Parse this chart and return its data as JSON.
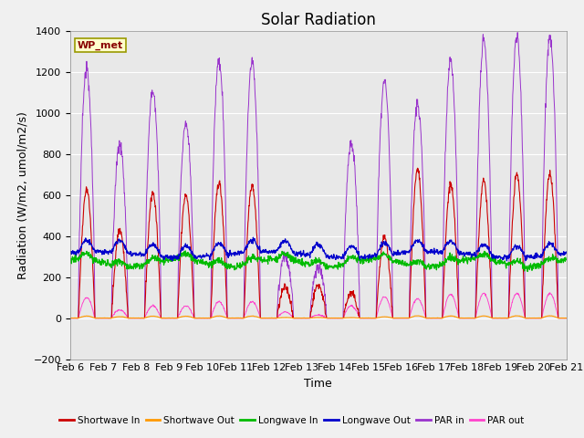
{
  "title": "Solar Radiation",
  "ylabel": "Radiation (W/m2, umol/m2/s)",
  "xlabel": "Time",
  "ylim": [
    -200,
    1400
  ],
  "xlim": [
    0,
    360
  ],
  "x_tick_labels": [
    "Feb 6",
    "Feb 7",
    "Feb 8",
    "Feb 9",
    "Feb 10",
    "Feb 11",
    "Feb 12",
    "Feb 13",
    "Feb 14",
    "Feb 15",
    "Feb 16",
    "Feb 17",
    "Feb 18",
    "Feb 19",
    "Feb 20",
    "Feb 21"
  ],
  "x_tick_positions": [
    0,
    24,
    48,
    72,
    96,
    120,
    144,
    168,
    192,
    216,
    240,
    264,
    288,
    312,
    336,
    360
  ],
  "station_label": "WP_met",
  "colors": {
    "shortwave_in": "#cc0000",
    "shortwave_out": "#ff9900",
    "longwave_in": "#00bb00",
    "longwave_out": "#0000cc",
    "par_in": "#9933cc",
    "par_out": "#ff44cc"
  },
  "legend_labels": [
    "Shortwave In",
    "Shortwave Out",
    "Longwave In",
    "Longwave Out",
    "PAR in",
    "PAR out"
  ],
  "background_color": "#e8e8e8",
  "plot_bg_color": "#e8e8e8",
  "fig_bg_color": "#f0f0f0",
  "grid_color": "#ffffff",
  "title_fontsize": 12,
  "label_fontsize": 9,
  "tick_fontsize": 8,
  "sw_peaks": [
    630,
    430,
    610,
    600,
    660,
    650,
    150,
    160,
    120,
    390,
    720,
    650,
    670,
    700,
    700
  ],
  "par_peaks": [
    1210,
    850,
    1110,
    950,
    1255,
    1248,
    300,
    250,
    850,
    1155,
    1040,
    1250,
    1350,
    1370,
    1370
  ],
  "par_out_peaks": [
    100,
    40,
    60,
    60,
    80,
    80,
    30,
    15,
    60,
    105,
    95,
    115,
    120,
    120,
    120
  ],
  "lw_in_base": 270,
  "lw_out_base": 310
}
